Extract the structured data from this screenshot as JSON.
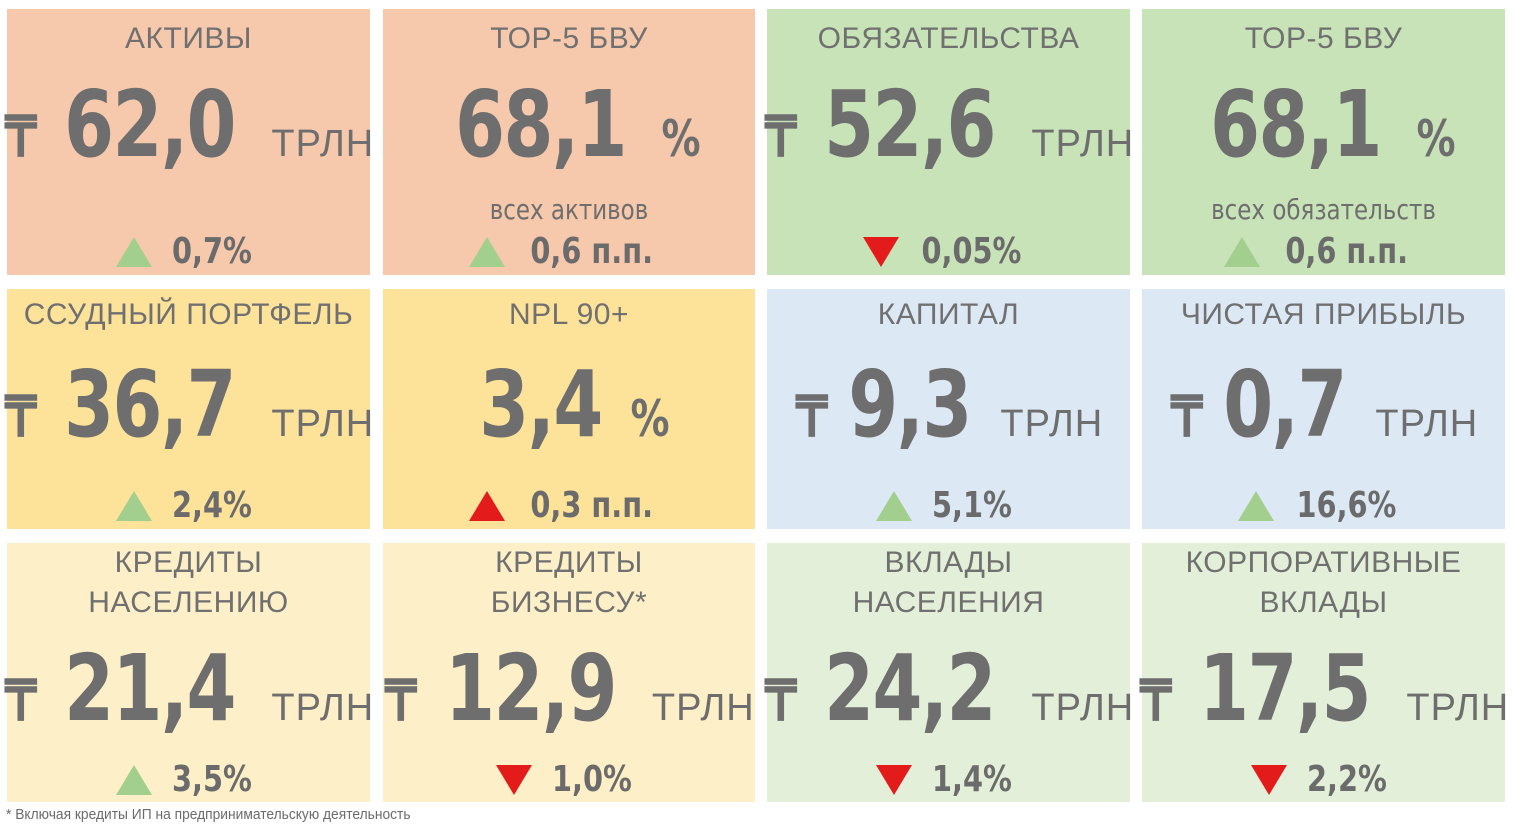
{
  "colors": {
    "salmon": "#f6c8ac",
    "green": "#c8e3b8",
    "yellow": "#fde29a",
    "light_yellow": "#fdf0c8",
    "light_blue": "#dde8f5",
    "light_green": "#e3efd8",
    "up_green": "#a3cf8e",
    "down_red": "#e41b1b"
  },
  "tiles": [
    {
      "title": "АКТИВЫ",
      "currency": "₸",
      "value": "62,0",
      "unit": "ТРЛН",
      "direction": "up",
      "change": "0,7%"
    },
    {
      "title": "ТОР-5 БВУ",
      "value": "68,1",
      "percent": "%",
      "subtitle": "всех активов",
      "direction": "up",
      "change": "0,6 п.п."
    },
    {
      "title": "ОБЯЗАТЕЛЬСТВА",
      "currency": "₸",
      "value": "52,6",
      "unit": "ТРЛН",
      "direction": "down",
      "change": "0,05%"
    },
    {
      "title": "ТОР-5 БВУ",
      "value": "68,1",
      "percent": "%",
      "subtitle": "всех обязательств",
      "direction": "up",
      "change": "0,6 п.п."
    },
    {
      "title": "ССУДНЫЙ ПОРТФЕЛЬ",
      "currency": "₸",
      "value": "36,7",
      "unit": "ТРЛН",
      "direction": "up",
      "change": "2,4%"
    },
    {
      "title": "NPL 90+",
      "value": "3,4",
      "percent": "%",
      "direction": "up-red",
      "change": "0,3 п.п."
    },
    {
      "title": "КАПИТАЛ",
      "currency": "₸",
      "value": "9,3",
      "unit": "ТРЛН",
      "direction": "up",
      "change": "5,1%"
    },
    {
      "title": "ЧИСТАЯ ПРИБЫЛЬ",
      "currency": "₸",
      "value": "0,7",
      "unit": "ТРЛН",
      "direction": "up",
      "change": "16,6%"
    },
    {
      "title": "КРЕДИТЫ\nНАСЕЛЕНИЮ",
      "currency": "₸",
      "value": "21,4",
      "unit": "ТРЛН",
      "direction": "up",
      "change": "3,5%"
    },
    {
      "title": "КРЕДИТЫ\nБИЗНЕСУ*",
      "currency": "₸",
      "value": "12,9",
      "unit": "ТРЛН",
      "direction": "down",
      "change": "1,0%"
    },
    {
      "title": "ВКЛАДЫ\nНАСЕЛЕНИЯ",
      "currency": "₸",
      "value": "24,2",
      "unit": "ТРЛН",
      "direction": "down",
      "change": "1,4%"
    },
    {
      "title": "КОРПОРАТИВНЫЕ\nВКЛАДЫ",
      "currency": "₸",
      "value": "17,5",
      "unit": "ТРЛН",
      "direction": "down",
      "change": "2,2%"
    }
  ],
  "footnote": "* Включая кредиты ИП на предпринимательскую деятельность"
}
